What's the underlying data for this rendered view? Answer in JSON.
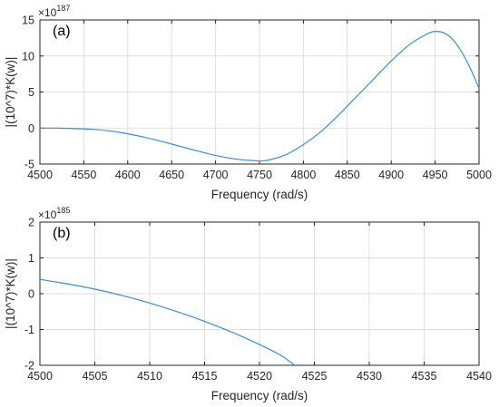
{
  "chart_data": [
    {
      "type": "line",
      "panel_label": "(a)",
      "xlabel": "Frequency (rad/s)",
      "ylabel": "|(10^7)*K(w)|",
      "exponent_base": "×10",
      "exponent_power": "187",
      "xlim": [
        4500,
        5000
      ],
      "ylim": [
        -5,
        15
      ],
      "xticks": [
        4500,
        4550,
        4600,
        4650,
        4700,
        4750,
        4800,
        4850,
        4900,
        4950,
        5000
      ],
      "yticks": [
        -5,
        0,
        5,
        10,
        15
      ],
      "grid": true,
      "line_color": "#3a8fd0",
      "series": [
        {
          "x": [
            4500,
            4520,
            4540,
            4560,
            4580,
            4600,
            4620,
            4640,
            4660,
            4680,
            4700,
            4720,
            4740,
            4750,
            4760,
            4780,
            4800,
            4820,
            4840,
            4860,
            4880,
            4900,
            4920,
            4940,
            4950,
            4960,
            4970,
            4980,
            4990,
            5000
          ],
          "y": [
            0,
            -0.02,
            -0.08,
            -0.18,
            -0.4,
            -0.8,
            -1.3,
            -1.9,
            -2.55,
            -3.2,
            -3.8,
            -4.25,
            -4.5,
            -4.55,
            -4.45,
            -3.7,
            -2.3,
            -0.5,
            1.8,
            4.3,
            6.8,
            9.3,
            11.5,
            13.0,
            13.4,
            13.2,
            12.3,
            10.6,
            8.3,
            5.5
          ]
        }
      ]
    },
    {
      "type": "line",
      "panel_label": "(b)",
      "xlabel": "Frequency (rad/s)",
      "ylabel": "|(10^7)*K(w)|",
      "exponent_base": "×10",
      "exponent_power": "185",
      "xlim": [
        4500,
        4540
      ],
      "ylim": [
        -2,
        2
      ],
      "xticks": [
        4500,
        4505,
        4510,
        4515,
        4520,
        4525,
        4530,
        4535,
        4540
      ],
      "yticks": [
        -2,
        -1,
        0,
        1,
        2
      ],
      "grid": true,
      "line_color": "#3a8fd0",
      "series": [
        {
          "x": [
            4500,
            4502,
            4504,
            4506,
            4508,
            4510,
            4512,
            4514,
            4516,
            4518,
            4520,
            4522,
            4523.2
          ],
          "y": [
            0.4,
            0.3,
            0.19,
            0.06,
            -0.09,
            -0.26,
            -0.45,
            -0.66,
            -0.89,
            -1.14,
            -1.42,
            -1.73,
            -2.0
          ]
        }
      ]
    }
  ]
}
